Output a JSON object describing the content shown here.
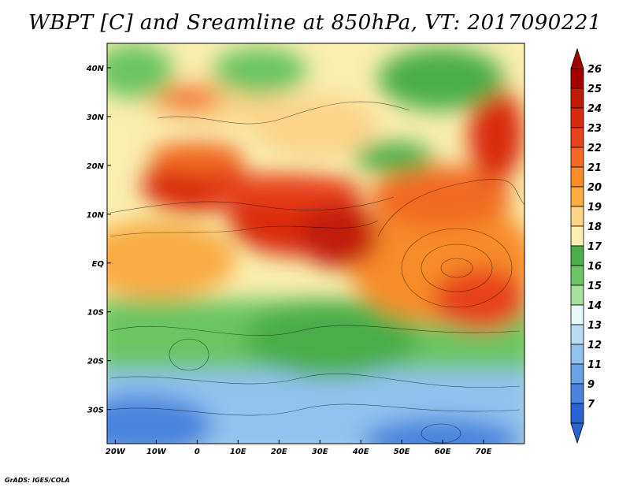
{
  "title": "WBPT [C] and Sreamline at 850hPa, VT: 2017090221",
  "credit": "GrADS: IGES/COLA",
  "map": {
    "lon_range": [
      -22,
      80
    ],
    "lat_range": [
      -37,
      45
    ],
    "lon_ticks": [
      {
        "value": -20,
        "label": "20W"
      },
      {
        "value": -10,
        "label": "10W"
      },
      {
        "value": 0,
        "label": "0"
      },
      {
        "value": 10,
        "label": "10E"
      },
      {
        "value": 20,
        "label": "20E"
      },
      {
        "value": 30,
        "label": "30E"
      },
      {
        "value": 40,
        "label": "40E"
      },
      {
        "value": 50,
        "label": "50E"
      },
      {
        "value": 60,
        "label": "60E"
      },
      {
        "value": 70,
        "label": "70E"
      }
    ],
    "lat_ticks": [
      {
        "value": 40,
        "label": "40N"
      },
      {
        "value": 30,
        "label": "30N"
      },
      {
        "value": 20,
        "label": "20N"
      },
      {
        "value": 10,
        "label": "10N"
      },
      {
        "value": 0,
        "label": "EQ"
      },
      {
        "value": -10,
        "label": "10S"
      },
      {
        "value": -20,
        "label": "20S"
      },
      {
        "value": -30,
        "label": "30S"
      }
    ]
  },
  "colorbar": {
    "labels": [
      "26",
      "25",
      "24",
      "23",
      "22",
      "21",
      "20",
      "19",
      "18",
      "17",
      "16",
      "15",
      "14",
      "13",
      "12",
      "11",
      "9",
      "7"
    ],
    "colors": [
      "#a50000",
      "#c21a08",
      "#d92a10",
      "#e8431c",
      "#f26a22",
      "#f78c2a",
      "#f9ac44",
      "#fbd489",
      "#faeeb0",
      "#4aae4a",
      "#6ac562",
      "#a8e0a0",
      "#e6f8f8",
      "#b8dcf4",
      "#92c2ee",
      "#6aa2e6",
      "#4a84de",
      "#2a64d2"
    ]
  }
}
